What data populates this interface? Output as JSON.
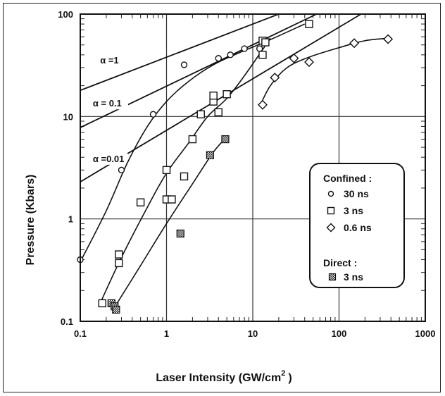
{
  "chart_data": {
    "type": "scatter",
    "xscale": "log",
    "yscale": "log",
    "xlim": [
      0.1,
      1000
    ],
    "ylim": [
      0.1,
      100
    ],
    "grid": true,
    "xlabel": "Laser Intensity (GW/cm",
    "xlabel_sup": "2",
    "xlabel_close": ")",
    "ylabel": "Pressure (Kbars)",
    "x_ticks": [
      "0.1",
      "1",
      "10",
      "100",
      "1000"
    ],
    "y_ticks": [
      "0.1",
      "1",
      "10",
      "100"
    ],
    "reference_lines": [
      {
        "label": "α =1",
        "points": [
          [
            0.1,
            18
          ],
          [
            20,
            100
          ]
        ]
      },
      {
        "label": "α = 0.1",
        "points": [
          [
            0.1,
            7.8
          ],
          [
            55,
            100
          ]
        ]
      },
      {
        "label": "α =0.01",
        "points": [
          [
            0.1,
            2.3
          ],
          [
            180,
            100
          ]
        ]
      }
    ],
    "series": [
      {
        "marker": "circle",
        "points": [
          [
            0.1,
            0.4
          ],
          [
            0.3,
            3
          ],
          [
            0.7,
            10.5
          ],
          [
            1.6,
            32
          ],
          [
            4,
            37
          ],
          [
            5.5,
            40
          ],
          [
            8,
            46
          ],
          [
            12,
            46
          ]
        ],
        "curve": [
          [
            0.1,
            0.38
          ],
          [
            0.2,
            1.2
          ],
          [
            0.35,
            3.5
          ],
          [
            0.6,
            8
          ],
          [
            1.0,
            14
          ],
          [
            1.8,
            22
          ],
          [
            3.5,
            32
          ],
          [
            7,
            42
          ],
          [
            15,
            55
          ],
          [
            40,
            80
          ]
        ]
      },
      {
        "marker": "square",
        "points": [
          [
            0.18,
            0.15
          ],
          [
            0.28,
            0.45
          ],
          [
            0.28,
            0.37
          ],
          [
            0.5,
            1.45
          ],
          [
            1.0,
            3.0
          ],
          [
            1.0,
            1.55
          ],
          [
            1.15,
            1.55
          ],
          [
            1.6,
            2.6
          ],
          [
            2.0,
            6.0
          ],
          [
            2.5,
            10.5
          ],
          [
            3.5,
            14
          ],
          [
            3.5,
            16
          ],
          [
            4.0,
            11
          ],
          [
            5.0,
            16.5
          ],
          [
            13,
            55
          ],
          [
            13,
            40
          ],
          [
            14,
            53
          ],
          [
            45,
            80
          ]
        ],
        "curve": [
          [
            0.17,
            0.15
          ],
          [
            0.3,
            0.42
          ],
          [
            0.6,
            1.3
          ],
          [
            1.0,
            2.8
          ],
          [
            1.8,
            5.5
          ],
          [
            3,
            10
          ],
          [
            5,
            15
          ],
          [
            8,
            25
          ],
          [
            13,
            45
          ],
          [
            16,
            58
          ]
        ]
      },
      {
        "marker": "diamond",
        "points": [
          [
            13,
            13
          ],
          [
            18,
            24
          ],
          [
            30,
            37
          ],
          [
            45,
            34
          ],
          [
            150,
            52
          ],
          [
            370,
            57
          ]
        ],
        "curve": [
          [
            12,
            12.5
          ],
          [
            16,
            20
          ],
          [
            25,
            30
          ],
          [
            45,
            38
          ],
          [
            100,
            47
          ],
          [
            200,
            55
          ],
          [
            370,
            58
          ]
        ]
      },
      {
        "marker": "checker",
        "points": [
          [
            0.23,
            0.15
          ],
          [
            0.25,
            0.14
          ],
          [
            0.26,
            0.13
          ],
          [
            1.45,
            0.72
          ],
          [
            3.2,
            4.2
          ],
          [
            4.8,
            6.0
          ]
        ],
        "curve": [
          [
            0.24,
            0.13
          ],
          [
            0.5,
            0.35
          ],
          [
            1.0,
            0.9
          ],
          [
            2.0,
            2.2
          ],
          [
            3.5,
            4.5
          ],
          [
            5.0,
            6.3
          ]
        ]
      }
    ],
    "legend": {
      "position": "right",
      "confined_title": "Confined :",
      "entries": [
        {
          "marker": "circle",
          "label": "30 ns"
        },
        {
          "marker": "square",
          "label": "3  ns"
        },
        {
          "marker": "diamond",
          "label": "0.6 ns"
        }
      ],
      "direct_title": "Direct :",
      "direct_entries": [
        {
          "marker": "checker",
          "label": "3 ns"
        }
      ]
    }
  }
}
